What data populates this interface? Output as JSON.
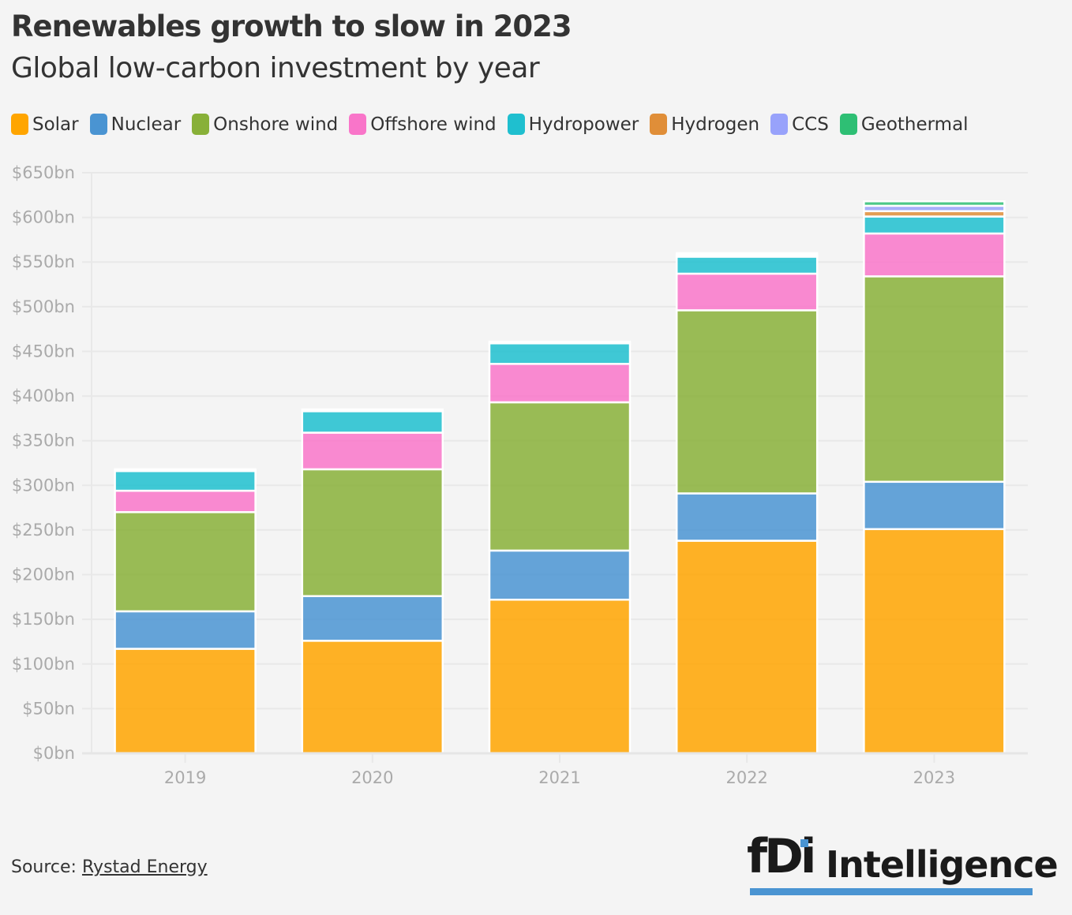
{
  "header": {
    "title": "Renewables growth to slow in 2023",
    "subtitle": "Global low-carbon investment by year"
  },
  "legend": [
    {
      "label": "Solar",
      "color": "#FFA500"
    },
    {
      "label": "Nuclear",
      "color": "#4A94D2"
    },
    {
      "label": "Onshore wind",
      "color": "#88B038"
    },
    {
      "label": "Offshore wind",
      "color": "#F975C9"
    },
    {
      "label": "Hydropower",
      "color": "#1FBFCF"
    },
    {
      "label": "Hydrogen",
      "color": "#E08E38"
    },
    {
      "label": "CCS",
      "color": "#98A2FB"
    },
    {
      "label": "Geothermal",
      "color": "#2EBF74"
    }
  ],
  "footer": {
    "source_prefix": "Source: ",
    "source_link": "Rystad Energy",
    "logo_mark": "fDi",
    "logo_text": "Intelligence"
  },
  "chart_data": {
    "type": "bar",
    "stacked": true,
    "title": "Renewables growth to slow in 2023",
    "subtitle": "Global low-carbon investment by year",
    "xlabel": "",
    "ylabel": "",
    "categories": [
      "2019",
      "2020",
      "2021",
      "2022",
      "2023"
    ],
    "ylim": [
      0,
      650
    ],
    "yticks": [
      0,
      50,
      100,
      150,
      200,
      250,
      300,
      350,
      400,
      450,
      500,
      550,
      600,
      650
    ],
    "ytick_labels": [
      "$0bn",
      "$50bn",
      "$100bn",
      "$150bn",
      "$200bn",
      "$250bn",
      "$300bn",
      "$350bn",
      "$400bn",
      "$450bn",
      "$500bn",
      "$550bn",
      "$600bn",
      "$650bn"
    ],
    "grid": true,
    "legend_position": "top-left",
    "unit": "$bn",
    "series": [
      {
        "name": "Solar",
        "color": "#FFA500",
        "values": [
          117,
          126,
          172,
          238,
          251
        ]
      },
      {
        "name": "Nuclear",
        "color": "#4A94D2",
        "values": [
          42,
          50,
          55,
          53,
          53
        ]
      },
      {
        "name": "Onshore wind",
        "color": "#88B038",
        "values": [
          111,
          142,
          166,
          205,
          230
        ]
      },
      {
        "name": "Offshore wind",
        "color": "#F975C9",
        "values": [
          24,
          41,
          43,
          41,
          48
        ]
      },
      {
        "name": "Hydropower",
        "color": "#1FBFCF",
        "values": [
          22,
          24,
          23,
          19,
          19
        ]
      },
      {
        "name": "Hydrogen",
        "color": "#E08E38",
        "values": [
          0,
          0,
          0,
          2,
          6
        ]
      },
      {
        "name": "CCS",
        "color": "#98A2FB",
        "values": [
          0,
          0,
          0,
          0,
          6
        ]
      },
      {
        "name": "Geothermal",
        "color": "#2EBF74",
        "values": [
          2,
          2,
          2,
          2,
          5
        ]
      }
    ]
  }
}
